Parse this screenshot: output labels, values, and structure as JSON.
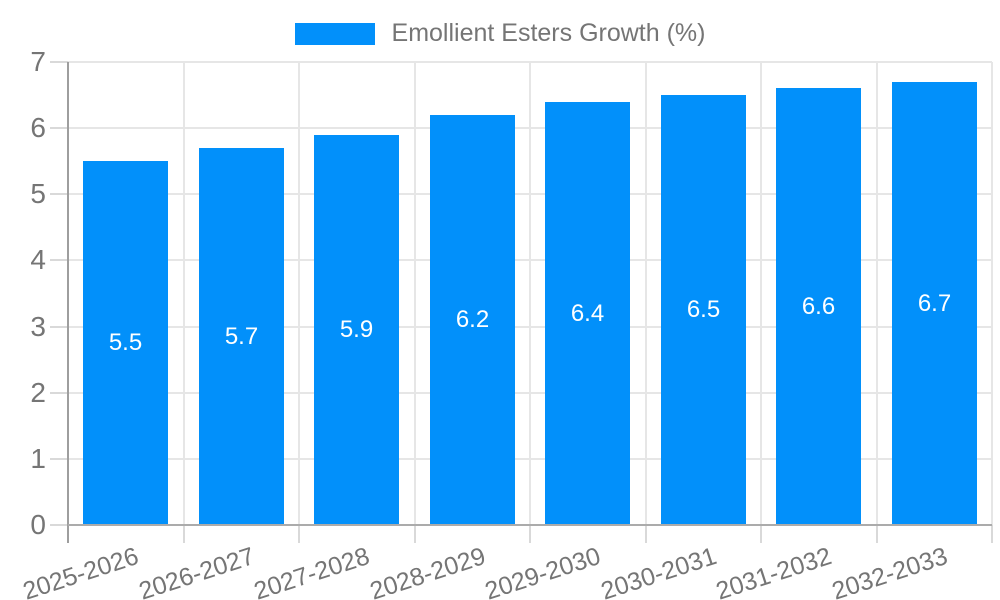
{
  "chart_data": {
    "type": "bar",
    "title": "Emollient Esters Growth (%)",
    "legend_position": "top",
    "categories": [
      "2025-2026",
      "2026-2027",
      "2027-2028",
      "2028-2029",
      "2029-2030",
      "2030-2031",
      "2031-2032",
      "2032-2033"
    ],
    "series": [
      {
        "name": "Emollient Esters Growth (%)",
        "values": [
          5.5,
          5.7,
          5.9,
          6.2,
          6.4,
          6.5,
          6.6,
          6.7
        ]
      }
    ],
    "bar_labels": [
      "5.5",
      "5.7",
      "5.9",
      "6.2",
      "6.4",
      "6.5",
      "6.6",
      "6.7"
    ],
    "xlabel": "",
    "ylabel": "",
    "ylim": [
      0,
      7
    ],
    "yticks": [
      0,
      1,
      2,
      3,
      4,
      5,
      6,
      7
    ],
    "grid": true,
    "colors": {
      "bar": "#0290fa",
      "grid": "#e6e6e6",
      "axis": "#9e9e9e",
      "baseline": "#ababab",
      "tick": "#d9d9d9",
      "text": "#757575",
      "value_label": "#ffffff",
      "background": "#ffffff"
    }
  }
}
